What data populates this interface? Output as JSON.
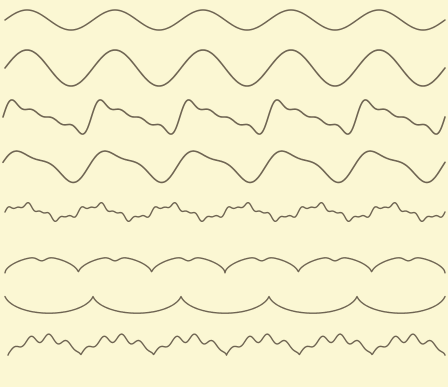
{
  "figure": {
    "background_color": "#fbf7d3",
    "stroke_color": "#6e6452",
    "curves": [
      {
        "kind": "simple-sine",
        "cycles": 5
      },
      {
        "kind": "simple-sine",
        "cycles": 5
      },
      {
        "kind": "sawtooth-sine",
        "cycles": 5
      },
      {
        "kind": "skewed-sine",
        "cycles": 5
      },
      {
        "kind": "rippled-sine",
        "cycles": 6
      },
      {
        "kind": "arched-scallop",
        "cycles": 6
      },
      {
        "kind": "cusped-scallop",
        "cycles": 5
      },
      {
        "kind": "crowned-scallop",
        "cycles": 6
      }
    ]
  }
}
